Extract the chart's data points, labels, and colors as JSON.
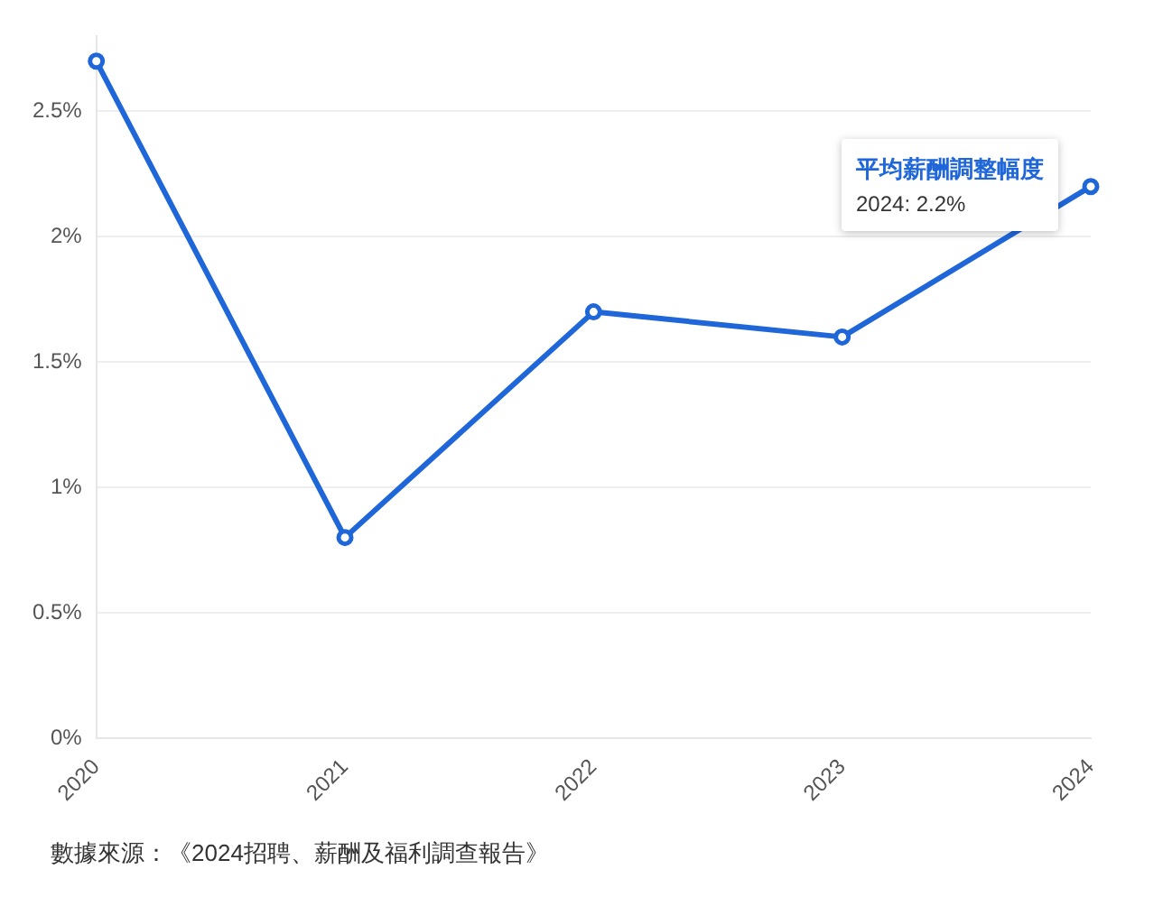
{
  "chart_data": {
    "type": "line",
    "categories": [
      "2020",
      "2021",
      "2022",
      "2023",
      "2024"
    ],
    "series": [
      {
        "name": "平均薪酬調整幅度",
        "color": "#1f66d9",
        "values": [
          2.7,
          0.8,
          1.7,
          1.6,
          2.2
        ]
      }
    ],
    "ylim": [
      0,
      2.8
    ],
    "yticks": [
      {
        "value": 0,
        "label": "0%"
      },
      {
        "value": 0.5,
        "label": "0.5%"
      },
      {
        "value": 1,
        "label": "1%"
      },
      {
        "value": 1.5,
        "label": "1.5%"
      },
      {
        "value": 2,
        "label": "2%"
      },
      {
        "value": 2.5,
        "label": "2.5%"
      }
    ],
    "grid": "y",
    "marker": "circle",
    "line_style": "solid",
    "legend": false,
    "annotations": [
      "2024: 2.2%",
      "數據來源：《2024招聘、薪酬及福利調查報告》"
    ]
  }
}
